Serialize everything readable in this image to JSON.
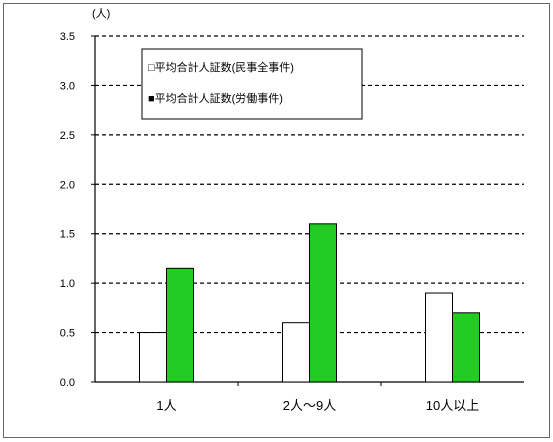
{
  "chart_data": {
    "type": "bar",
    "title": "",
    "xlabel": "",
    "ylabel": "",
    "unit_label": "(人)",
    "categories": [
      "1人",
      "2人〜9人",
      "10人以上"
    ],
    "ylim": [
      0.0,
      3.5
    ],
    "yticks": [
      "0.0",
      "0.5",
      "1.0",
      "1.5",
      "2.0",
      "2.5",
      "3.0",
      "3.5"
    ],
    "grid": true,
    "legend_position": "top-left",
    "series": [
      {
        "name": "□平均合計人証数(民事全事件)",
        "values": [
          0.5,
          0.6,
          0.9
        ],
        "color": "#ffffff"
      },
      {
        "name": "■平均合計人証数(労働事件)",
        "values": [
          1.15,
          1.6,
          0.7
        ],
        "color": "#22cc22"
      }
    ]
  }
}
